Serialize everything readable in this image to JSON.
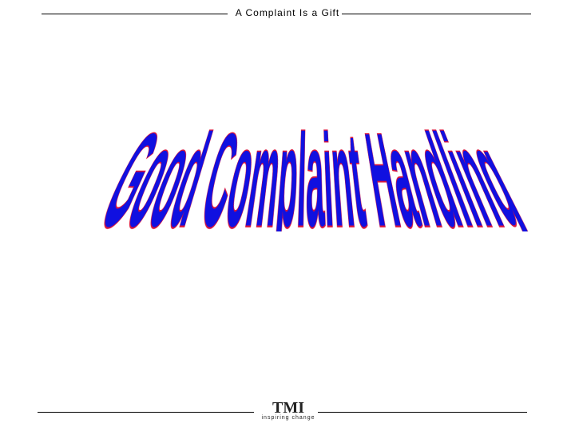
{
  "header": {
    "title": "A Complaint Is a Gift"
  },
  "wordart": {
    "text": "Good Complaint Handling"
  },
  "footer": {
    "logo": "TMI",
    "tagline": "inspiring change"
  }
}
